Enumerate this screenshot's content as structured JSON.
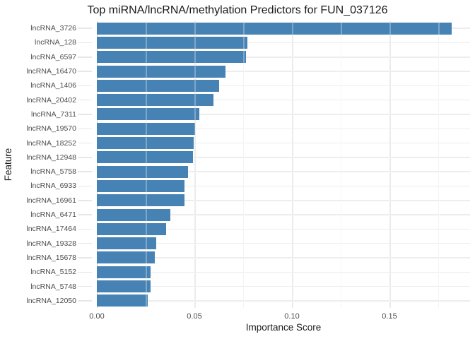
{
  "figure": {
    "title": "Top miRNA/lncRNA/methylation Predictors for FUN_037126"
  },
  "chart_data": {
    "type": "bar",
    "orientation": "horizontal",
    "title": "Top miRNA/lncRNA/methylation Predictors for FUN_037126",
    "xlabel": "Importance Score",
    "ylabel": "Feature",
    "categories": [
      "lncRNA_3726",
      "lncRNA_128",
      "lncRNA_6597",
      "lncRNA_16470",
      "lncRNA_1406",
      "lncRNA_20402",
      "lncRNA_7311",
      "lncRNA_19570",
      "lncRNA_18252",
      "lncRNA_12948",
      "lncRNA_5758",
      "lncRNA_6933",
      "lncRNA_16961",
      "lncRNA_6471",
      "lncRNA_17464",
      "lncRNA_19328",
      "lncRNA_15678",
      "lncRNA_5152",
      "lncRNA_5748",
      "lncRNA_12050"
    ],
    "values": [
      0.182,
      0.0772,
      0.0765,
      0.066,
      0.0627,
      0.0598,
      0.0525,
      0.0504,
      0.0497,
      0.0493,
      0.0467,
      0.045,
      0.0449,
      0.0377,
      0.0356,
      0.0305,
      0.0297,
      0.0275,
      0.0274,
      0.0261
    ],
    "xlim": [
      0,
      0.191
    ],
    "x_major_ticks": [
      0,
      0.05,
      0.1,
      0.15
    ],
    "x_major_tick_labels": [
      "0.00",
      "0.05",
      "0.10",
      "0.15"
    ],
    "x_minor_ticks": [
      0.025,
      0.075,
      0.125,
      0.175
    ],
    "grid": true,
    "legend": "none",
    "bar_color": "#4682B4",
    "gridline_color": "#ededed",
    "background_color": "#ffffff",
    "tick_label_color": "#4d4d4d",
    "text_color": "#1a1a1a"
  }
}
